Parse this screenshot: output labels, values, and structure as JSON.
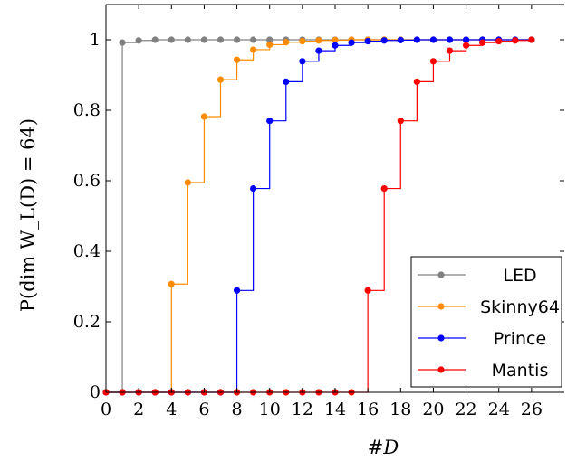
{
  "chart_data": {
    "type": "line",
    "step": "post",
    "xlabel": "#D",
    "ylabel": "P(dim W_L(D) = 64)",
    "xlim": [
      0,
      28
    ],
    "ylim": [
      0,
      1.1
    ],
    "xticks": [
      0,
      2,
      4,
      6,
      8,
      10,
      12,
      14,
      16,
      18,
      20,
      22,
      24,
      26
    ],
    "yticks": [
      0,
      0.2,
      0.4,
      0.6,
      0.8,
      1
    ],
    "ytick_labels": [
      "0",
      "0.2",
      "0.4",
      "0.6",
      "0.8",
      "1"
    ],
    "legend_position": "bottom-right",
    "grid": false,
    "series": [
      {
        "name": "LED",
        "color": "#808080",
        "x": [
          0,
          1,
          2,
          3,
          4,
          5,
          6,
          7,
          8,
          9,
          10,
          11,
          12,
          13,
          14,
          15,
          16,
          17,
          18,
          19,
          20,
          21,
          22,
          23,
          24,
          25,
          26
        ],
        "y": [
          0,
          0.992,
          0.998,
          1,
          1,
          1,
          1,
          1,
          1,
          1,
          1,
          1,
          1,
          1,
          1,
          1,
          1,
          1,
          1,
          1,
          1,
          1,
          1,
          1,
          1,
          1,
          1
        ]
      },
      {
        "name": "Skinny64",
        "color": "#ff8c00",
        "x": [
          0,
          1,
          2,
          3,
          4,
          5,
          6,
          7,
          8,
          9,
          10,
          11,
          12,
          13,
          14,
          15,
          16,
          17,
          18,
          19,
          20,
          21,
          22,
          23,
          24,
          25,
          26
        ],
        "y": [
          0,
          0,
          0,
          0,
          0.307,
          0.595,
          0.782,
          0.887,
          0.943,
          0.972,
          0.986,
          0.993,
          0.996,
          0.998,
          0.999,
          1,
          1,
          1,
          1,
          1,
          1,
          1,
          1,
          1,
          1,
          1,
          1
        ]
      },
      {
        "name": "Prince",
        "color": "#0000ff",
        "x": [
          0,
          1,
          2,
          3,
          4,
          5,
          6,
          7,
          8,
          9,
          10,
          11,
          12,
          13,
          14,
          15,
          16,
          17,
          18,
          19,
          20,
          21,
          22,
          23,
          24,
          25,
          26
        ],
        "y": [
          0,
          0,
          0,
          0,
          0,
          0,
          0,
          0,
          0.289,
          0.578,
          0.77,
          0.881,
          0.939,
          0.969,
          0.984,
          0.992,
          0.996,
          0.998,
          0.999,
          1,
          1,
          1,
          1,
          1,
          1,
          1,
          1
        ]
      },
      {
        "name": "Mantis",
        "color": "#ff0000",
        "x": [
          0,
          1,
          2,
          3,
          4,
          5,
          6,
          7,
          8,
          9,
          10,
          11,
          12,
          13,
          14,
          15,
          16,
          17,
          18,
          19,
          20,
          21,
          22,
          23,
          24,
          25,
          26
        ],
        "y": [
          0,
          0,
          0,
          0,
          0,
          0,
          0,
          0,
          0,
          0,
          0,
          0,
          0,
          0,
          0,
          0,
          0.289,
          0.578,
          0.77,
          0.881,
          0.939,
          0.969,
          0.984,
          0.992,
          0.996,
          0.998,
          1
        ]
      }
    ]
  }
}
